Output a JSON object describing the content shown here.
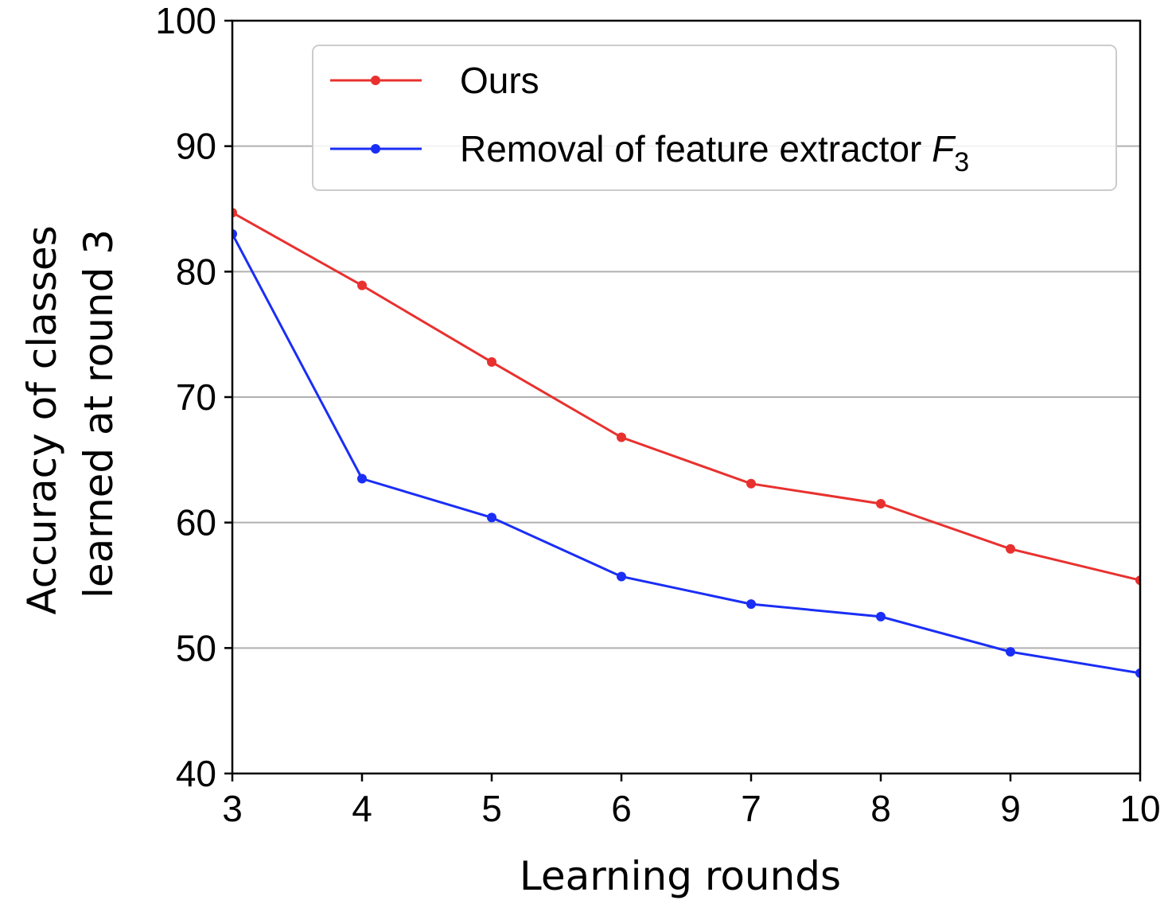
{
  "chart_data": {
    "type": "line",
    "title": "",
    "xlabel": "Learning rounds",
    "ylabel_lines": [
      "Accuracy of classes",
      "learned at round 3"
    ],
    "x": [
      3,
      4,
      5,
      6,
      7,
      8,
      9,
      10
    ],
    "xlim": [
      3,
      10
    ],
    "ylim": [
      40,
      100
    ],
    "xticks": [
      3,
      4,
      5,
      6,
      7,
      8,
      9,
      10
    ],
    "yticks": [
      40,
      50,
      60,
      70,
      80,
      90,
      100
    ],
    "grid": "horizontal",
    "legend_position": "top-right",
    "series": [
      {
        "name": "Ours",
        "color": "#e8312f",
        "values": [
          84.7,
          78.9,
          72.8,
          66.8,
          63.1,
          61.5,
          57.9,
          55.4
        ]
      },
      {
        "name_text": "Removal of feature extractor ",
        "name_symbol": "F",
        "name_subscript": "3",
        "color": "#1a2ef5",
        "values": [
          83.0,
          63.5,
          60.4,
          55.7,
          53.5,
          52.5,
          49.7,
          48.0
        ]
      }
    ]
  }
}
